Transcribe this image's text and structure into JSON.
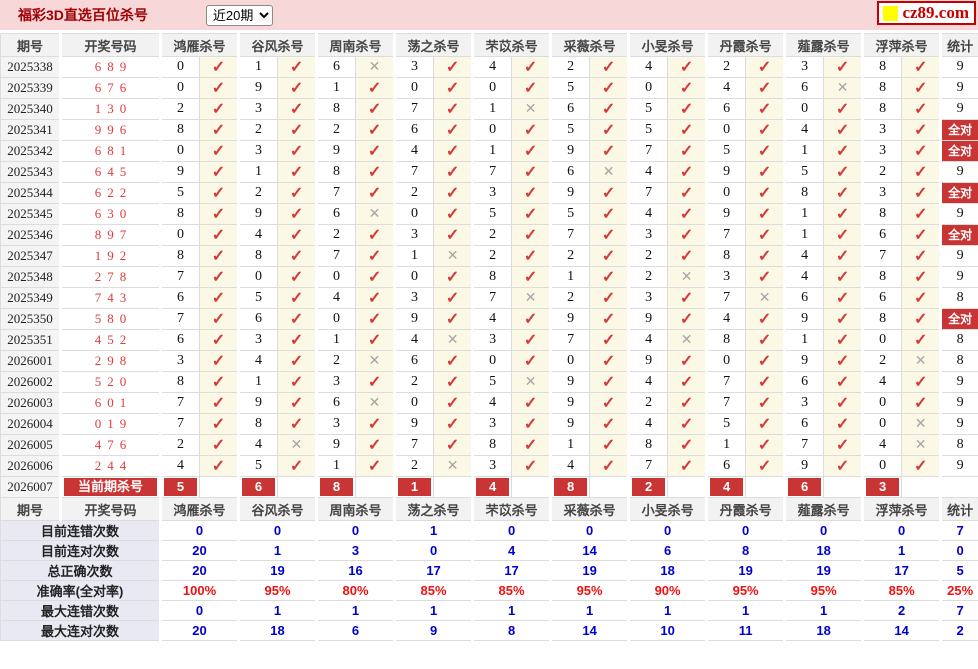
{
  "header": {
    "title": "福彩3D直选百位杀号",
    "range_selected": "近20期",
    "logo_text": "cz89.com"
  },
  "columns": {
    "period": "期号",
    "number": "开奖号码",
    "experts": [
      "鸿雁杀号",
      "谷风杀号",
      "周南杀号",
      "荡之杀号",
      "芣苡杀号",
      "采薇杀号",
      "小旻杀号",
      "丹霞杀号",
      "薤露杀号",
      "浮萍杀号"
    ],
    "stat": "统计"
  },
  "rows": [
    {
      "period": "2025338",
      "number": "689",
      "kills": [
        "0",
        "1",
        "6",
        "3",
        "4",
        "2",
        "4",
        "2",
        "3",
        "8"
      ],
      "hits": [
        1,
        1,
        0,
        1,
        1,
        1,
        1,
        1,
        1,
        1
      ],
      "stat": "9"
    },
    {
      "period": "2025339",
      "number": "676",
      "kills": [
        "0",
        "9",
        "1",
        "0",
        "0",
        "5",
        "0",
        "4",
        "6",
        "8"
      ],
      "hits": [
        1,
        1,
        1,
        1,
        1,
        1,
        1,
        1,
        0,
        1
      ],
      "stat": "9"
    },
    {
      "period": "2025340",
      "number": "130",
      "kills": [
        "2",
        "3",
        "8",
        "7",
        "1",
        "6",
        "5",
        "6",
        "0",
        "8"
      ],
      "hits": [
        1,
        1,
        1,
        1,
        0,
        1,
        1,
        1,
        1,
        1
      ],
      "stat": "9"
    },
    {
      "period": "2025341",
      "number": "996",
      "kills": [
        "8",
        "2",
        "2",
        "6",
        "0",
        "5",
        "5",
        "0",
        "4",
        "3"
      ],
      "hits": [
        1,
        1,
        1,
        1,
        1,
        1,
        1,
        1,
        1,
        1
      ],
      "stat": "全对"
    },
    {
      "period": "2025342",
      "number": "681",
      "kills": [
        "0",
        "3",
        "9",
        "4",
        "1",
        "9",
        "7",
        "5",
        "1",
        "3"
      ],
      "hits": [
        1,
        1,
        1,
        1,
        1,
        1,
        1,
        1,
        1,
        1
      ],
      "stat": "全对"
    },
    {
      "period": "2025343",
      "number": "645",
      "kills": [
        "9",
        "1",
        "8",
        "7",
        "7",
        "6",
        "4",
        "9",
        "5",
        "2"
      ],
      "hits": [
        1,
        1,
        1,
        1,
        1,
        0,
        1,
        1,
        1,
        1
      ],
      "stat": "9"
    },
    {
      "period": "2025344",
      "number": "622",
      "kills": [
        "5",
        "2",
        "7",
        "2",
        "3",
        "9",
        "7",
        "0",
        "8",
        "3"
      ],
      "hits": [
        1,
        1,
        1,
        1,
        1,
        1,
        1,
        1,
        1,
        1
      ],
      "stat": "全对"
    },
    {
      "period": "2025345",
      "number": "630",
      "kills": [
        "8",
        "9",
        "6",
        "0",
        "5",
        "5",
        "4",
        "9",
        "1",
        "8"
      ],
      "hits": [
        1,
        1,
        0,
        1,
        1,
        1,
        1,
        1,
        1,
        1
      ],
      "stat": "9"
    },
    {
      "period": "2025346",
      "number": "897",
      "kills": [
        "0",
        "4",
        "2",
        "3",
        "2",
        "7",
        "3",
        "7",
        "1",
        "6"
      ],
      "hits": [
        1,
        1,
        1,
        1,
        1,
        1,
        1,
        1,
        1,
        1
      ],
      "stat": "全对"
    },
    {
      "period": "2025347",
      "number": "192",
      "kills": [
        "8",
        "8",
        "7",
        "1",
        "2",
        "2",
        "2",
        "8",
        "4",
        "7"
      ],
      "hits": [
        1,
        1,
        1,
        0,
        1,
        1,
        1,
        1,
        1,
        1
      ],
      "stat": "9"
    },
    {
      "period": "2025348",
      "number": "278",
      "kills": [
        "7",
        "0",
        "0",
        "0",
        "8",
        "1",
        "2",
        "3",
        "4",
        "8"
      ],
      "hits": [
        1,
        1,
        1,
        1,
        1,
        1,
        0,
        1,
        1,
        1
      ],
      "stat": "9"
    },
    {
      "period": "2025349",
      "number": "743",
      "kills": [
        "6",
        "5",
        "4",
        "3",
        "7",
        "2",
        "3",
        "7",
        "6",
        "6"
      ],
      "hits": [
        1,
        1,
        1,
        1,
        0,
        1,
        1,
        0,
        1,
        1
      ],
      "stat": "8"
    },
    {
      "period": "2025350",
      "number": "580",
      "kills": [
        "7",
        "6",
        "0",
        "9",
        "4",
        "9",
        "9",
        "4",
        "9",
        "8"
      ],
      "hits": [
        1,
        1,
        1,
        1,
        1,
        1,
        1,
        1,
        1,
        1
      ],
      "stat": "全对"
    },
    {
      "period": "2025351",
      "number": "452",
      "kills": [
        "6",
        "3",
        "1",
        "4",
        "3",
        "7",
        "4",
        "8",
        "1",
        "0"
      ],
      "hits": [
        1,
        1,
        1,
        0,
        1,
        1,
        0,
        1,
        1,
        1
      ],
      "stat": "8"
    },
    {
      "period": "2026001",
      "number": "298",
      "kills": [
        "3",
        "4",
        "2",
        "6",
        "0",
        "0",
        "9",
        "0",
        "9",
        "2"
      ],
      "hits": [
        1,
        1,
        0,
        1,
        1,
        1,
        1,
        1,
        1,
        0
      ],
      "stat": "8"
    },
    {
      "period": "2026002",
      "number": "520",
      "kills": [
        "8",
        "1",
        "3",
        "2",
        "5",
        "9",
        "4",
        "7",
        "6",
        "4"
      ],
      "hits": [
        1,
        1,
        1,
        1,
        0,
        1,
        1,
        1,
        1,
        1
      ],
      "stat": "9"
    },
    {
      "period": "2026003",
      "number": "601",
      "kills": [
        "7",
        "9",
        "6",
        "0",
        "4",
        "9",
        "2",
        "7",
        "3",
        "0"
      ],
      "hits": [
        1,
        1,
        0,
        1,
        1,
        1,
        1,
        1,
        1,
        1
      ],
      "stat": "9"
    },
    {
      "period": "2026004",
      "number": "019",
      "kills": [
        "7",
        "8",
        "3",
        "9",
        "3",
        "9",
        "4",
        "5",
        "6",
        "0"
      ],
      "hits": [
        1,
        1,
        1,
        1,
        1,
        1,
        1,
        1,
        1,
        0
      ],
      "stat": "9"
    },
    {
      "period": "2026005",
      "number": "476",
      "kills": [
        "2",
        "4",
        "9",
        "7",
        "8",
        "1",
        "8",
        "1",
        "7",
        "4"
      ],
      "hits": [
        1,
        0,
        1,
        1,
        1,
        1,
        1,
        1,
        1,
        0
      ],
      "stat": "8"
    },
    {
      "period": "2026006",
      "number": "244",
      "kills": [
        "4",
        "5",
        "1",
        "2",
        "3",
        "4",
        "7",
        "6",
        "9",
        "0"
      ],
      "hits": [
        1,
        1,
        1,
        0,
        1,
        1,
        1,
        1,
        1,
        1
      ],
      "stat": "9"
    }
  ],
  "all_correct_label": "全对",
  "current": {
    "period": "2026007",
    "label": "当前期杀号",
    "kills": [
      "5",
      "6",
      "8",
      "1",
      "4",
      "8",
      "2",
      "4",
      "6",
      "3"
    ]
  },
  "summary": [
    {
      "label": "目前连错次数",
      "values": [
        "0",
        "0",
        "0",
        "1",
        "0",
        "0",
        "0",
        "0",
        "0",
        "0"
      ],
      "stat": "7",
      "style": "blue"
    },
    {
      "label": "目前连对次数",
      "values": [
        "20",
        "1",
        "3",
        "0",
        "4",
        "14",
        "6",
        "8",
        "18",
        "1"
      ],
      "stat": "0",
      "style": "blue"
    },
    {
      "label": "总正确次数",
      "values": [
        "20",
        "19",
        "16",
        "17",
        "17",
        "19",
        "18",
        "19",
        "19",
        "17"
      ],
      "stat": "5",
      "style": "blue"
    },
    {
      "label": "准确率(全对率)",
      "values": [
        "100%",
        "95%",
        "80%",
        "85%",
        "85%",
        "95%",
        "90%",
        "95%",
        "95%",
        "85%"
      ],
      "stat": "25%",
      "style": "red"
    },
    {
      "label": "最大连错次数",
      "values": [
        "0",
        "1",
        "1",
        "1",
        "1",
        "1",
        "1",
        "1",
        "1",
        "2"
      ],
      "stat": "7",
      "style": "blue"
    },
    {
      "label": "最大连对次数",
      "values": [
        "20",
        "18",
        "6",
        "9",
        "8",
        "14",
        "10",
        "11",
        "18",
        "14"
      ],
      "stat": "2",
      "style": "blue"
    }
  ],
  "colors": {
    "topbar_bg": "#f8d7d8",
    "title_text": "#9e0004",
    "check": "#d43a3a",
    "cross": "#a6a6a6",
    "mark_cell_bg": "#fbf8e5",
    "badge_red": "#c93434",
    "summary_label_bg": "#e9e9f4",
    "value_blue": "#0000d0",
    "value_red": "#ee1111",
    "logo_red": "#c40000",
    "logo_yellow": "#ffff00"
  }
}
